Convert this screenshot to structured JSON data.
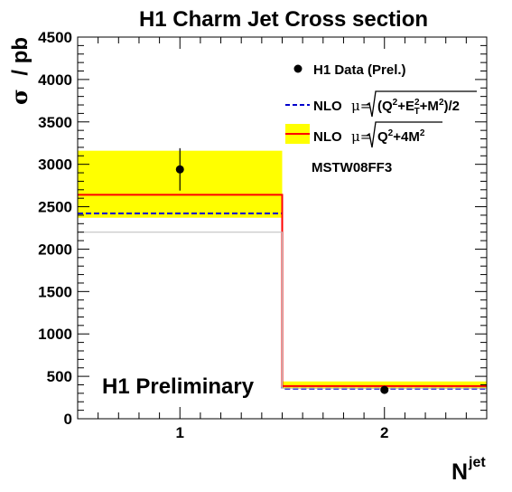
{
  "chart_data": {
    "type": "histogram",
    "title": "H1 Charm Jet Cross section",
    "ylabel_symbol": "σ",
    "ylabel_unit": "/ pb",
    "xlabel": "N",
    "xlabel_superscript": "jet",
    "xlim": [
      0.5,
      2.5
    ],
    "ylim": [
      0,
      4500
    ],
    "x_ticks": [
      "1",
      "2"
    ],
    "y_ticks": [
      "0",
      "500",
      "1000",
      "1500",
      "2000",
      "2500",
      "3000",
      "3500",
      "4000",
      "4500"
    ],
    "bins": [
      {
        "x": 1,
        "low": 0.5,
        "high": 1.5
      },
      {
        "x": 2,
        "low": 1.5,
        "high": 2.5
      }
    ],
    "series": [
      {
        "name": "H1 Data (Prel.)",
        "kind": "points",
        "y": [
          2940,
          340
        ],
        "yerr": [
          250,
          30
        ],
        "color": "#000000"
      },
      {
        "name": "NLO μ=√(Q²+E_T²+M²)/2",
        "kind": "step",
        "values": [
          2420,
          355
        ],
        "style": "dashed",
        "color": "#0000cc"
      },
      {
        "name": "NLO μ=√(Q²+4M²)",
        "kind": "step",
        "values": [
          2640,
          385
        ],
        "band_low": [
          2370,
          355
        ],
        "band_high": [
          3160,
          440
        ],
        "color": "#ff0000",
        "band_color": "#ffff00"
      },
      {
        "name": "",
        "kind": "step",
        "values": [
          2200,
          360
        ],
        "style": "thin",
        "color": "#bbbbbb"
      }
    ],
    "legend_placement": "top-right",
    "grid": false
  },
  "legend": {
    "data_label": "H1 Data (Prel.)",
    "nlo1_label": "NLO",
    "nlo2_label": "NLO",
    "pdf_label": "MSTW08FF3"
  },
  "annotation": "H1 Preliminary"
}
